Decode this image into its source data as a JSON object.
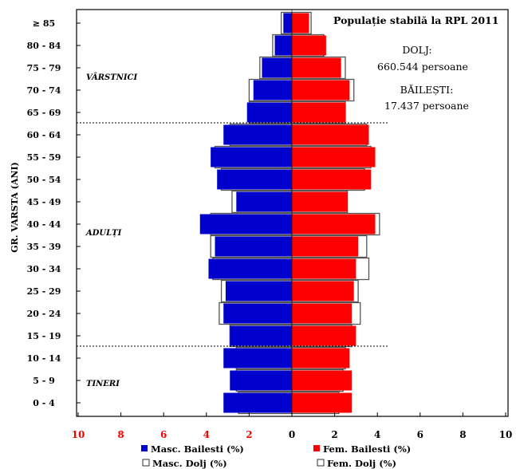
{
  "chart_data": {
    "type": "bar",
    "orientation": "horizontal",
    "title": "Populație stabilă la RPL 2011",
    "ylabel": "GR. VARSTA (ANI)",
    "xlim": [
      -10,
      10
    ],
    "x_ticks": [
      10,
      8,
      6,
      4,
      2,
      0,
      2,
      4,
      6,
      8,
      10
    ],
    "categories": [
      "≥ 85",
      "80 - 84",
      "75 - 79",
      "70 - 74",
      "65 - 69",
      "60 - 64",
      "55 - 59",
      "50 - 54",
      "45 - 49",
      "40 - 44",
      "35 - 39",
      "30 - 34",
      "25 - 29",
      "20 - 24",
      "15 - 19",
      "10 - 14",
      "5 - 9",
      "0 - 4"
    ],
    "series": [
      {
        "name": "Masc. Bailesti (%)",
        "side": "left",
        "color": "#0000cc",
        "values": [
          0.4,
          0.8,
          1.4,
          1.8,
          2.1,
          3.2,
          3.8,
          3.5,
          2.6,
          4.3,
          3.6,
          3.9,
          3.1,
          3.2,
          2.9,
          3.2,
          2.9,
          3.2
        ]
      },
      {
        "name": "Fem. Bailesti (%)",
        "side": "right",
        "color": "#ff0000",
        "values": [
          0.8,
          1.6,
          2.3,
          2.7,
          2.5,
          3.6,
          3.9,
          3.7,
          2.6,
          3.9,
          3.1,
          3.0,
          2.9,
          2.8,
          3.0,
          2.7,
          2.8,
          2.8
        ]
      },
      {
        "name": "Masc. Dolj (%)",
        "side": "left",
        "color": "#ffffff",
        "values": [
          0.5,
          0.9,
          1.5,
          2.0,
          2.0,
          2.9,
          3.6,
          3.3,
          2.8,
          3.8,
          3.8,
          3.7,
          3.3,
          3.4,
          2.9,
          2.6,
          2.6,
          2.5
        ]
      },
      {
        "name": "Fem. Dolj (%)",
        "side": "right",
        "color": "#ffffff",
        "values": [
          0.9,
          1.5,
          2.5,
          2.9,
          2.5,
          3.5,
          3.7,
          3.4,
          2.6,
          4.1,
          3.5,
          3.6,
          3.1,
          3.2,
          2.8,
          2.5,
          2.4,
          2.2
        ]
      }
    ],
    "groups": [
      {
        "label": "VÂRSTNICI",
        "first": "≥ 85",
        "last": "65 - 69"
      },
      {
        "label": "ADULȚI",
        "first": "60 - 64",
        "last": "15 - 19"
      },
      {
        "label": "TINERI",
        "first": "10 - 14",
        "last": "0 - 4"
      }
    ],
    "annotations": [
      "DOLJ:",
      "660.544 persoane",
      "BĂILEȘTI:",
      "17.437 persoane"
    ],
    "legend": [
      "Masc. Bailesti (%)",
      "Fem. Bailesti (%)",
      "Masc. Dolj (%)",
      "Fem. Dolj (%)"
    ],
    "tick_colors": {
      "left": "#ff0000",
      "center": "#000000",
      "right": "#000000"
    }
  }
}
